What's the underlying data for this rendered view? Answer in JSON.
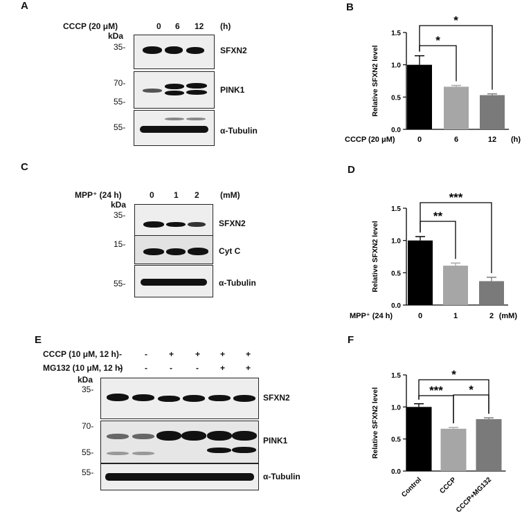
{
  "panels": {
    "A": {
      "label": "A",
      "treatment_label": "CCCP (20 μM)",
      "doses": [
        "0",
        "6",
        "12"
      ],
      "unit": "(h)",
      "kda": "kDa",
      "blots": [
        {
          "name": "SFXN2",
          "markers": [
            "35-"
          ]
        },
        {
          "name": "PINK1",
          "markers": [
            "70-",
            "55-"
          ]
        },
        {
          "name": "α-Tubulin",
          "markers": [
            "55-"
          ]
        }
      ]
    },
    "B": {
      "label": "B"
    },
    "C": {
      "label": "C",
      "treatment_label": "MPP⁺ (24 h)",
      "doses": [
        "0",
        "1",
        "2"
      ],
      "unit": "(mM)",
      "kda": "kDa",
      "blots": [
        {
          "name": "SFXN2",
          "markers": [
            "35-"
          ]
        },
        {
          "name": "Cyt C",
          "markers": [
            "15-"
          ]
        },
        {
          "name": "α-Tubulin",
          "markers": [
            "55-"
          ]
        }
      ]
    },
    "D": {
      "label": "D"
    },
    "E": {
      "label": "E",
      "rows": [
        {
          "label": "CCCP (10 μM, 12 h)",
          "signs": [
            "-",
            "-",
            "+",
            "+",
            "+",
            "+"
          ]
        },
        {
          "label": "MG132 (10 μM, 12 h)",
          "signs": [
            "-",
            "-",
            "-",
            "-",
            "+",
            "+"
          ]
        }
      ],
      "kda": "kDa",
      "blots": [
        {
          "name": "SFXN2",
          "markers": [
            "35-"
          ]
        },
        {
          "name": "PINK1",
          "markers": [
            "70-",
            "55-"
          ]
        },
        {
          "name": "α-Tubulin",
          "markers": [
            "55-"
          ]
        }
      ]
    },
    "F": {
      "label": "F"
    }
  },
  "chart_data": [
    {
      "panel": "B",
      "type": "bar",
      "categories": [
        "0",
        "6",
        "12"
      ],
      "values": [
        1.0,
        0.66,
        0.53
      ],
      "errors": [
        0.14,
        0.02,
        0.02
      ],
      "bar_colors": [
        "#000000",
        "#a6a6a6",
        "#7a7a7a"
      ],
      "ylabel": "Relative SFXN2 level",
      "xlabel": "CCCP (20 μM)",
      "x_unit": "(h)",
      "ylim": [
        0,
        1.5
      ],
      "yticks": [
        "0.0",
        "0.5",
        "1.0",
        "1.5"
      ],
      "significance": [
        {
          "from": 0,
          "to": 1,
          "label": "*"
        },
        {
          "from": 0,
          "to": 2,
          "label": "*"
        }
      ]
    },
    {
      "panel": "D",
      "type": "bar",
      "categories": [
        "0",
        "1",
        "2"
      ],
      "values": [
        1.0,
        0.61,
        0.37
      ],
      "errors": [
        0.06,
        0.04,
        0.06
      ],
      "bar_colors": [
        "#000000",
        "#a6a6a6",
        "#7a7a7a"
      ],
      "ylabel": "Relative SFXN2 level",
      "xlabel": "MPP⁺ (24 h)",
      "x_unit": "(mM)",
      "ylim": [
        0,
        1.5
      ],
      "yticks": [
        "0.0",
        "0.5",
        "1.0",
        "1.5"
      ],
      "significance": [
        {
          "from": 0,
          "to": 1,
          "label": "**"
        },
        {
          "from": 0,
          "to": 2,
          "label": "***"
        }
      ]
    },
    {
      "panel": "F",
      "type": "bar",
      "categories": [
        "Control",
        "CCCP",
        "CCCP+MG132"
      ],
      "values": [
        1.0,
        0.66,
        0.81
      ],
      "errors": [
        0.05,
        0.02,
        0.02
      ],
      "bar_colors": [
        "#000000",
        "#a6a6a6",
        "#7a7a7a"
      ],
      "ylabel": "Relative SFXN2 level",
      "xlabel": "",
      "x_unit": "",
      "ylim": [
        0,
        1.5
      ],
      "yticks": [
        "0.0",
        "0.5",
        "1.0",
        "1.5"
      ],
      "significance": [
        {
          "from": 0,
          "to": 1,
          "label": "***"
        },
        {
          "from": 1,
          "to": 2,
          "label": "*"
        },
        {
          "from": 0,
          "to": 2,
          "label": "*"
        }
      ]
    }
  ]
}
